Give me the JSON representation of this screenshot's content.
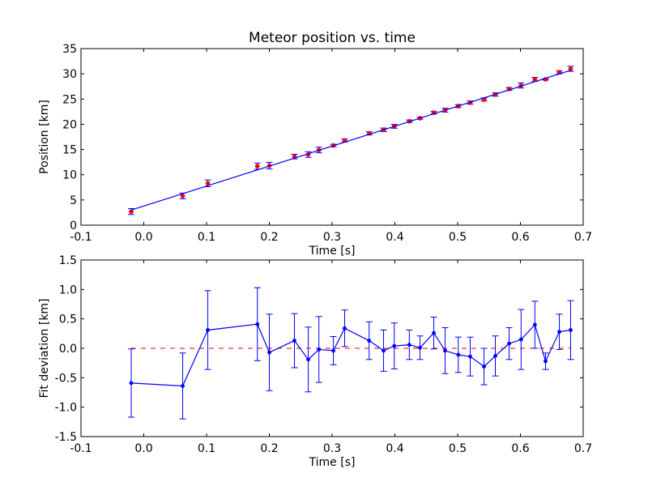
{
  "chart_data": [
    {
      "type": "scatter",
      "title": "Meteor position vs. time",
      "xlabel": "Time [s]",
      "ylabel": "Position [km]",
      "xlim": [
        -0.1,
        0.7
      ],
      "ylim": [
        0,
        35
      ],
      "xticks": [
        "-0.1",
        "0.0",
        "0.1",
        "0.2",
        "0.3",
        "0.4",
        "0.5",
        "0.6",
        "0.7"
      ],
      "yticks": [
        "0",
        "5",
        "10",
        "15",
        "20",
        "25",
        "30",
        "35"
      ],
      "grid": false,
      "series": [
        {
          "kind": "errorbar-points",
          "color": "#ff0000",
          "x": [
            -0.02,
            0.062,
            0.102,
            0.181,
            0.2,
            0.24,
            0.262,
            0.279,
            0.302,
            0.32,
            0.359,
            0.382,
            0.399,
            0.423,
            0.44,
            0.462,
            0.48,
            0.501,
            0.52,
            0.542,
            0.56,
            0.582,
            0.601,
            0.623,
            0.64,
            0.662,
            0.68
          ],
          "y": [
            2.7,
            5.8,
            8.3,
            11.7,
            11.8,
            13.6,
            14.0,
            14.9,
            15.8,
            16.8,
            18.2,
            18.9,
            19.6,
            20.6,
            21.2,
            22.3,
            22.8,
            23.6,
            24.3,
            24.9,
            25.9,
            27.0,
            27.7,
            28.9,
            28.9,
            30.3,
            31.0
          ],
          "err": [
            0.58,
            0.56,
            0.67,
            0.62,
            0.65,
            0.46,
            0.55,
            0.56,
            0.24,
            0.31,
            0.32,
            0.35,
            0.39,
            0.25,
            0.2,
            0.27,
            0.39,
            0.3,
            0.33,
            0.31,
            0.34,
            0.27,
            0.51,
            0.4,
            0.14,
            0.3,
            0.5
          ]
        },
        {
          "kind": "fit-line",
          "color": "#0000ff",
          "x": [
            -0.02,
            0.68
          ],
          "y": [
            3.0,
            30.7
          ]
        }
      ]
    },
    {
      "type": "line",
      "xlabel": "Time [s]",
      "ylabel": "Fit deviation [km]",
      "xlim": [
        -0.1,
        0.7
      ],
      "ylim": [
        -1.5,
        1.5
      ],
      "xticks": [
        "-0.1",
        "0.0",
        "0.1",
        "0.2",
        "0.3",
        "0.4",
        "0.5",
        "0.6",
        "0.7"
      ],
      "yticks": [
        "-1.5",
        "-1.0",
        "-0.5",
        "0.0",
        "0.5",
        "1.0",
        "1.5"
      ],
      "grid": false,
      "reference_line": {
        "y": 0,
        "color": "#ff0000",
        "style": "dashed",
        "x": [
          -0.02,
          0.68
        ]
      },
      "series": [
        {
          "kind": "errorbar-line",
          "color": "#0000ff",
          "x": [
            -0.02,
            0.062,
            0.102,
            0.181,
            0.2,
            0.24,
            0.262,
            0.279,
            0.302,
            0.32,
            0.359,
            0.382,
            0.399,
            0.423,
            0.44,
            0.462,
            0.48,
            0.501,
            0.52,
            0.542,
            0.56,
            0.582,
            0.601,
            0.623,
            0.64,
            0.662,
            0.68
          ],
          "y": [
            -0.59,
            -0.64,
            0.31,
            0.41,
            -0.07,
            0.13,
            -0.19,
            -0.02,
            -0.04,
            0.34,
            0.13,
            -0.04,
            0.04,
            0.06,
            0.01,
            0.26,
            -0.04,
            -0.11,
            -0.14,
            -0.31,
            -0.13,
            0.08,
            0.15,
            0.4,
            -0.22,
            0.28,
            0.31
          ],
          "err": [
            0.58,
            0.56,
            0.67,
            0.62,
            0.65,
            0.46,
            0.55,
            0.56,
            0.24,
            0.31,
            0.32,
            0.35,
            0.39,
            0.25,
            0.2,
            0.27,
            0.39,
            0.3,
            0.33,
            0.31,
            0.34,
            0.27,
            0.51,
            0.4,
            0.14,
            0.3,
            0.5
          ]
        }
      ]
    }
  ]
}
